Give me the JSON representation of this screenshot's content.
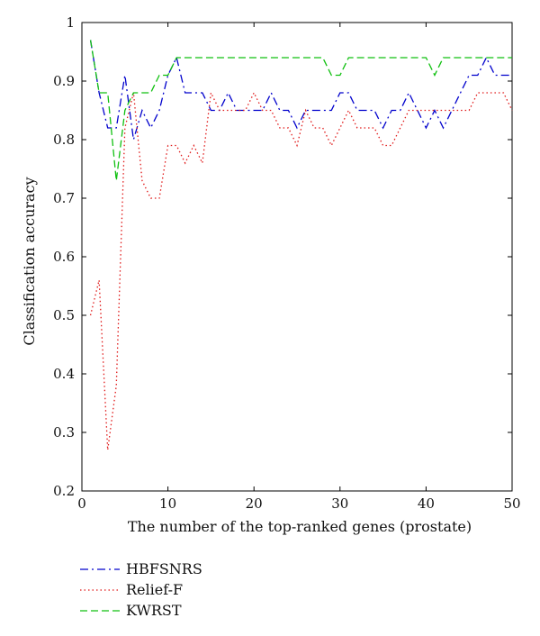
{
  "chart_data": {
    "type": "line",
    "xlabel": "The number of the top-ranked genes (prostate)",
    "ylabel": "Classification accuracy",
    "xlim": [
      0,
      50
    ],
    "ylim": [
      0.2,
      1
    ],
    "xticks": [
      0,
      10,
      20,
      30,
      40,
      50
    ],
    "yticks": [
      0.2,
      0.3,
      0.4,
      0.5,
      0.6,
      0.7,
      0.8,
      0.9,
      1
    ],
    "grid": false,
    "legend_position": "below-left",
    "x": [
      1,
      2,
      3,
      4,
      5,
      6,
      7,
      8,
      9,
      10,
      11,
      12,
      13,
      14,
      15,
      16,
      17,
      18,
      19,
      20,
      21,
      22,
      23,
      24,
      25,
      26,
      27,
      28,
      29,
      30,
      31,
      32,
      33,
      34,
      35,
      36,
      37,
      38,
      39,
      40,
      41,
      42,
      43,
      44,
      45,
      46,
      47,
      48,
      49,
      50
    ],
    "series": [
      {
        "name": "HBFSNRS",
        "color": "#0000cc",
        "style": "dashdot",
        "values": [
          0.97,
          0.88,
          0.82,
          0.82,
          0.91,
          0.8,
          0.85,
          0.82,
          0.85,
          0.91,
          0.94,
          0.88,
          0.88,
          0.88,
          0.85,
          0.85,
          0.88,
          0.85,
          0.85,
          0.85,
          0.85,
          0.88,
          0.85,
          0.85,
          0.82,
          0.85,
          0.85,
          0.85,
          0.85,
          0.88,
          0.88,
          0.85,
          0.85,
          0.85,
          0.82,
          0.85,
          0.85,
          0.88,
          0.85,
          0.82,
          0.85,
          0.82,
          0.85,
          0.88,
          0.91,
          0.91,
          0.94,
          0.91,
          0.91,
          0.91
        ]
      },
      {
        "name": "Relief-F",
        "color": "#e01818",
        "style": "dotted",
        "values": [
          0.5,
          0.56,
          0.27,
          0.38,
          0.82,
          0.88,
          0.73,
          0.7,
          0.7,
          0.79,
          0.79,
          0.76,
          0.79,
          0.76,
          0.88,
          0.85,
          0.85,
          0.85,
          0.85,
          0.88,
          0.85,
          0.85,
          0.82,
          0.82,
          0.79,
          0.85,
          0.82,
          0.82,
          0.79,
          0.82,
          0.85,
          0.82,
          0.82,
          0.82,
          0.79,
          0.79,
          0.82,
          0.85,
          0.85,
          0.85,
          0.85,
          0.85,
          0.85,
          0.85,
          0.85,
          0.88,
          0.88,
          0.88,
          0.88,
          0.85
        ]
      },
      {
        "name": "KWRST",
        "color": "#10c010",
        "style": "dashed",
        "values": [
          0.97,
          0.88,
          0.88,
          0.73,
          0.85,
          0.88,
          0.88,
          0.88,
          0.91,
          0.91,
          0.94,
          0.94,
          0.94,
          0.94,
          0.94,
          0.94,
          0.94,
          0.94,
          0.94,
          0.94,
          0.94,
          0.94,
          0.94,
          0.94,
          0.94,
          0.94,
          0.94,
          0.94,
          0.91,
          0.91,
          0.94,
          0.94,
          0.94,
          0.94,
          0.94,
          0.94,
          0.94,
          0.94,
          0.94,
          0.94,
          0.91,
          0.94,
          0.94,
          0.94,
          0.94,
          0.94,
          0.94,
          0.94,
          0.94,
          0.94
        ]
      }
    ]
  }
}
